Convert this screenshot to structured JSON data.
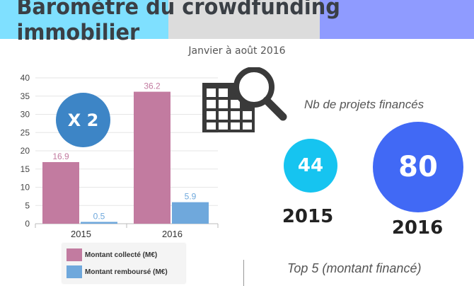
{
  "title": "Baromètre du crowdfunding immobilier",
  "subtitle": "Janvier à août 2016",
  "multiplier_badge": "X 2",
  "projects": {
    "label": "Nb de projets financés",
    "items": [
      {
        "year": "2015",
        "value": "44",
        "color": "#16c4f0"
      },
      {
        "year": "2016",
        "value": "80",
        "color": "#4169f5"
      }
    ]
  },
  "top5_label": "Top 5 (montant financé)",
  "chart_data": {
    "type": "bar",
    "categories": [
      "2015",
      "2016"
    ],
    "series": [
      {
        "name": "Montant collecté (M€)",
        "values": [
          16.9,
          36.2
        ],
        "color": "#c27ba0"
      },
      {
        "name": "Montant remboursé (M€)",
        "values": [
          0.5,
          5.9
        ],
        "color": "#6fa8dc"
      }
    ],
    "ylim": [
      0,
      40
    ],
    "yticks": [
      0,
      5,
      10,
      15,
      20,
      25,
      30,
      35,
      40
    ],
    "grid": true,
    "legend": "bottom"
  },
  "icon": "building-search-icon"
}
